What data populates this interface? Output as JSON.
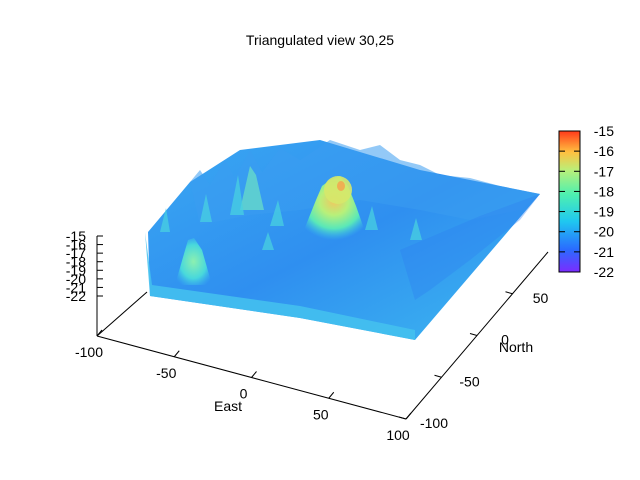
{
  "chart_data": {
    "type": "surface-3d",
    "title": "Triangulated view 30,25",
    "view": {
      "rot_x": 30,
      "rot_z": 25
    },
    "xlabel": "East",
    "ylabel": "North",
    "zlabel": "",
    "xlim": [
      -100,
      100
    ],
    "ylim": [
      -100,
      100
    ],
    "zlim": [
      -22,
      -15
    ],
    "x_ticks": [
      {
        "value": -100,
        "label": "-100"
      },
      {
        "value": -50,
        "label": "-50"
      },
      {
        "value": 0,
        "label": "0"
      },
      {
        "value": 50,
        "label": "50"
      },
      {
        "value": 100,
        "label": "100"
      }
    ],
    "y_ticks": [
      {
        "value": -100,
        "label": "-100"
      },
      {
        "value": -50,
        "label": "-50"
      },
      {
        "value": 0,
        "label": "0"
      },
      {
        "value": 50,
        "label": "50"
      }
    ],
    "z_ticks": [
      {
        "value": -15,
        "label": "-15"
      },
      {
        "value": -16,
        "label": "-16"
      },
      {
        "value": -17,
        "label": "-17"
      },
      {
        "value": -18,
        "label": "-18"
      },
      {
        "value": -19,
        "label": "-19"
      },
      {
        "value": -20,
        "label": "-20"
      },
      {
        "value": -21,
        "label": "-21"
      },
      {
        "value": -22,
        "label": "-22"
      }
    ],
    "colorbar": {
      "range": [
        -22,
        -15
      ],
      "ticks": [
        "-15",
        "-16",
        "-17",
        "-18",
        "-19",
        "-20",
        "-21",
        "-22"
      ],
      "colors": [
        "#7b2cff",
        "#2a6bff",
        "#1fc8f0",
        "#4ef0b0",
        "#b8f07a",
        "#ffc040",
        "#ff3a1a"
      ]
    },
    "surface": {
      "base_level": -21,
      "features": [
        {
          "x": 0,
          "y": 20,
          "height": -16.5,
          "width": 18
        },
        {
          "x": -80,
          "y": -20,
          "height": -19.0,
          "width": 10
        },
        {
          "x": -50,
          "y": 40,
          "height": -19.5,
          "width": 8
        },
        {
          "x": 40,
          "y": 10,
          "height": -20.0,
          "width": 10
        }
      ]
    }
  }
}
